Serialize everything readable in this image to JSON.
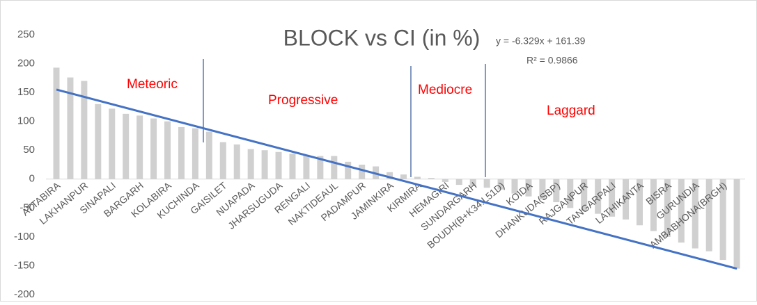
{
  "chart_data": {
    "type": "bar",
    "title": "BLOCK vs CI (in %)",
    "categories": [
      "ATTABIRA",
      null,
      "LAKHANPUR",
      null,
      "SINAPALI",
      null,
      "BARGARH",
      null,
      "KOLABIRA",
      null,
      "KUCHINDA",
      null,
      "GAISILET",
      null,
      "NUAPADA",
      null,
      "JHARSUGUDA",
      null,
      "RENGALI",
      null,
      "NAKTIDEAUL",
      null,
      "PADAMPUR",
      null,
      "JAMINKIRA",
      null,
      "KIRMIRA",
      null,
      "HEMAGIRI",
      null,
      "SUNDARGARH",
      null,
      "BOUDH(B+K34:L51D)",
      null,
      "KOIDA",
      null,
      "DHANKUDA(SBP)",
      null,
      "RAJGANPUR",
      null,
      "TANGARPALI",
      null,
      "LATHIKANTA",
      null,
      "BISRA",
      null,
      "GURUNDIA",
      null,
      "AMBABHONA(BRGH)",
      null
    ],
    "values": [
      193,
      176,
      170,
      130,
      122,
      113,
      110,
      105,
      100,
      90,
      88,
      82,
      64,
      60,
      52,
      50,
      47,
      44,
      42,
      40,
      40,
      30,
      25,
      22,
      12,
      8,
      4,
      2,
      -5,
      -10,
      -12,
      -15,
      -18,
      -25,
      -30,
      -35,
      -40,
      -50,
      -55,
      -60,
      -65,
      -70,
      -80,
      -90,
      -100,
      -110,
      -120,
      -125,
      -140,
      -155
    ],
    "color": "#d0d0d0",
    "ylim": [
      -200,
      250
    ],
    "yticks": [
      -200,
      -150,
      -100,
      -50,
      0,
      50,
      100,
      150,
      200,
      250
    ],
    "trendline": {
      "slope": -6.329,
      "intercept": 161.39,
      "color": "#4472c4",
      "equation": "y = -6.329x + 161.39",
      "r2_label": "R² = 0.9866"
    },
    "annotations": [
      "Meteoric",
      "Progressive",
      "Mediocre",
      "Laggard"
    ]
  }
}
